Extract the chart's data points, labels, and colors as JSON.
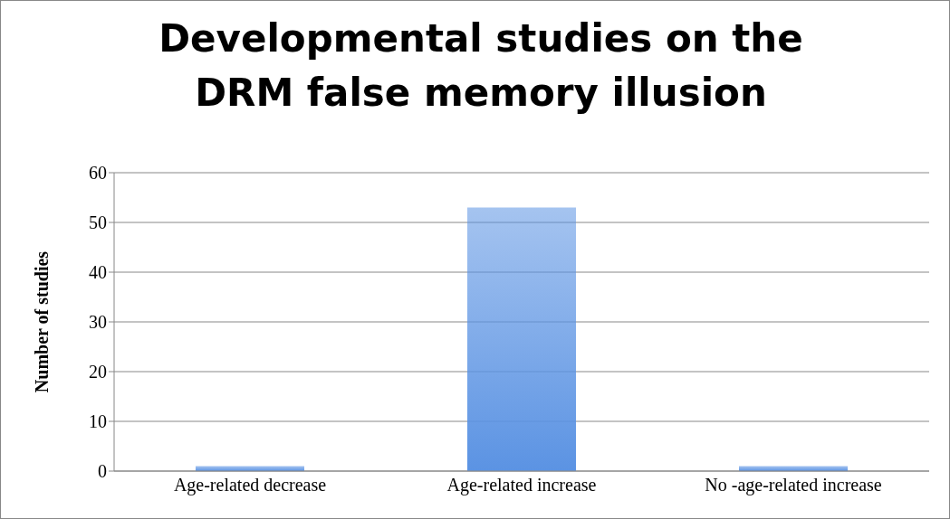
{
  "chart_data": {
    "type": "bar",
    "title": "Developmental studies on the DRM false memory illusion",
    "ylabel": "Number of studies",
    "categories": [
      "Age-related decrease",
      "Age-related increase",
      "No -age-related increase"
    ],
    "values": [
      1,
      53,
      1
    ],
    "color": "#5b93e3",
    "ylim": [
      0,
      60
    ],
    "yticks": [
      0,
      10,
      20,
      30,
      40,
      50,
      60
    ],
    "grid": "y"
  }
}
